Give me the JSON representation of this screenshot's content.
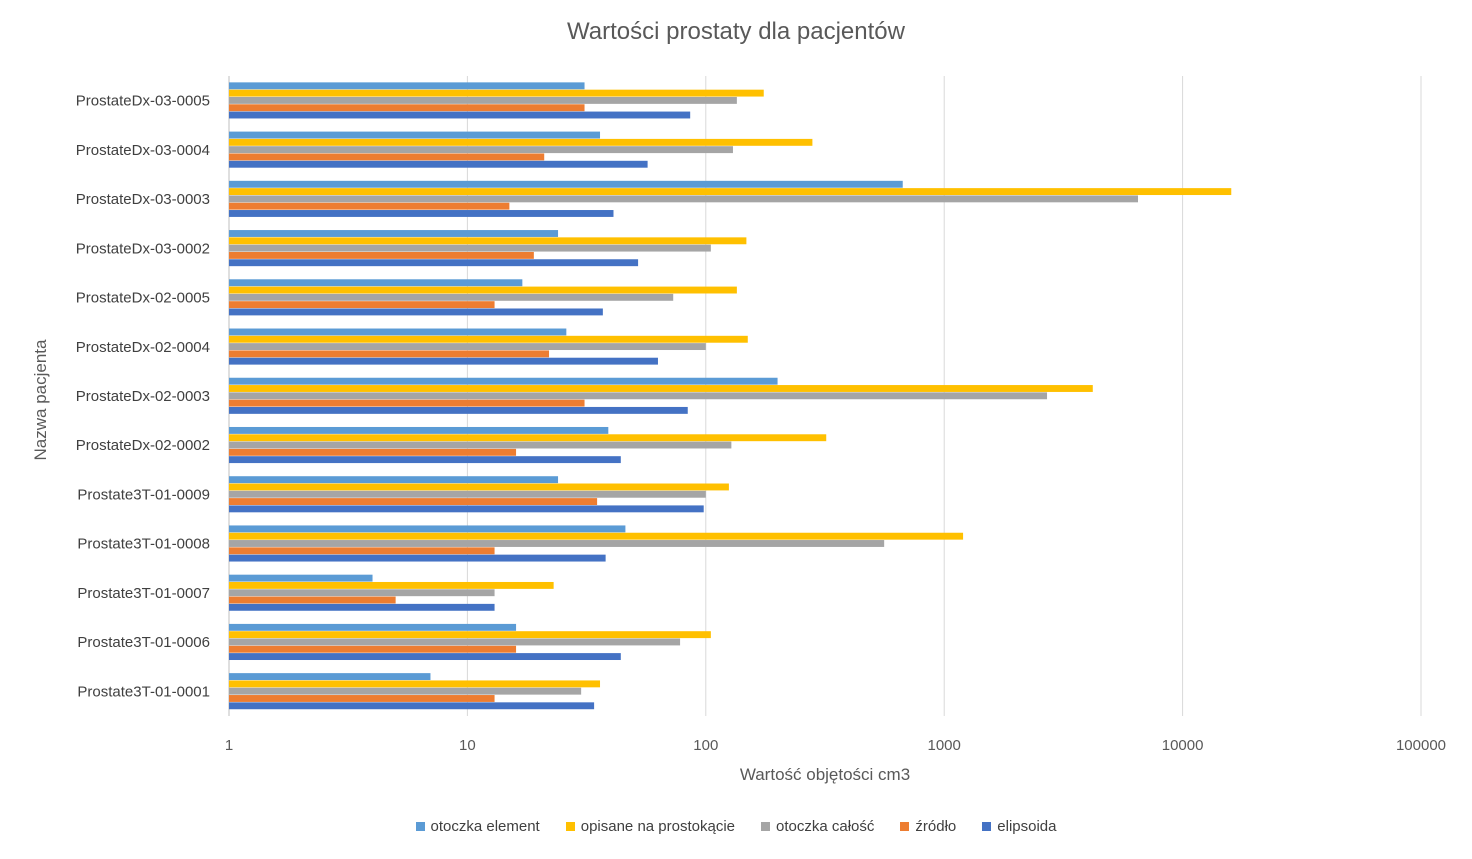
{
  "chart_data": {
    "type": "bar",
    "orientation": "horizontal",
    "title": "Wartości prostaty dla pacjentów",
    "xlabel": "Wartość objętości cm3",
    "ylabel": "Nazwa pacjenta",
    "x_scale": "log",
    "xlim": [
      1,
      100000
    ],
    "x_ticks": [
      "1",
      "10",
      "100",
      "1000",
      "10000",
      "100000"
    ],
    "grid": true,
    "legend_position": "bottom",
    "categories": [
      "ProstateDx-03-0005",
      "ProstateDx-03-0004",
      "ProstateDx-03-0003",
      "ProstateDx-03-0002",
      "ProstateDx-02-0005",
      "ProstateDx-02-0004",
      "ProstateDx-02-0003",
      "ProstateDx-02-0002",
      "Prostate3T-01-0009",
      "Prostate3T-01-0008",
      "Prostate3T-01-0007",
      "Prostate3T-01-0006",
      "Prostate3T-01-0001"
    ],
    "series": [
      {
        "name": "otoczka element",
        "color": "#5B9BD5",
        "values": [
          31,
          36,
          670,
          24,
          17,
          26,
          200,
          39,
          24,
          46,
          4,
          16,
          7
        ]
      },
      {
        "name": "opisane na prostokącie",
        "color": "#FFC000",
        "values": [
          175,
          280,
          16000,
          148,
          135,
          150,
          4200,
          320,
          125,
          1200,
          23,
          105,
          36
        ]
      },
      {
        "name": "otoczka całość",
        "color": "#A5A5A5",
        "values": [
          135,
          130,
          6500,
          105,
          73,
          100,
          2700,
          128,
          100,
          560,
          13,
          78,
          30
        ]
      },
      {
        "name": "źródło",
        "color": "#ED7D31",
        "values": [
          31,
          21,
          15,
          19,
          13,
          22,
          31,
          16,
          35,
          13,
          5,
          16,
          13
        ]
      },
      {
        "name": "elipsoida",
        "color": "#4472C4",
        "values": [
          86,
          57,
          41,
          52,
          37,
          63,
          84,
          44,
          98,
          38,
          13,
          44,
          34
        ]
      }
    ]
  }
}
